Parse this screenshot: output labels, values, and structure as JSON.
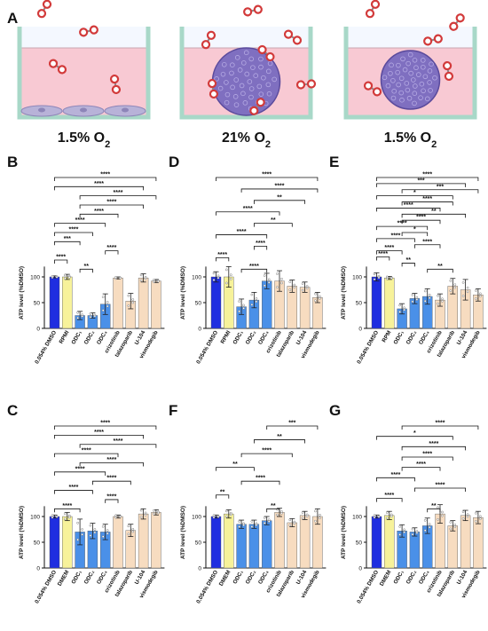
{
  "panel_a": {
    "letter": "A",
    "wells": [
      {
        "label": "1.5% O",
        "sub": "2",
        "content": "cell-monolayer"
      },
      {
        "label": "21% O",
        "sub": "2",
        "content": "spheroid"
      },
      {
        "label": "1.5% O",
        "sub": "2",
        "content": "spheroid"
      }
    ]
  },
  "colors": {
    "dmso": "#1f2ee0",
    "medium": "#f7f29a",
    "odc": "#4a90e8",
    "drug": "#f7dcc0",
    "media_pink": "#f8c9d3",
    "well_wall": "#a8d8c8",
    "o2_ring": "#d23a3a"
  },
  "ylabel": "ATP level (%DMSO)",
  "chart_data": [
    {
      "panel": "B",
      "type": "bar",
      "categories": [
        "0.054% DMSO",
        "RPMI",
        "ODC₁",
        "ODC₂",
        "ODC₃",
        "crizotinib",
        "talazoparib",
        "U-104",
        "vismodegib"
      ],
      "values": [
        100,
        100,
        25,
        25,
        47,
        98,
        53,
        98,
        92
      ],
      "errors": [
        2,
        5,
        8,
        5,
        20,
        2,
        15,
        8,
        3
      ],
      "ylabel": "ATP level (%DMSO)",
      "ylim": [
        0,
        150
      ],
      "yticks": [
        0,
        50,
        100
      ],
      "brackets": [
        {
          "from": 0,
          "to": 8,
          "label": "****"
        },
        {
          "from": 0,
          "to": 7,
          "label": "****"
        },
        {
          "from": 2,
          "to": 8,
          "label": "****"
        },
        {
          "from": 2,
          "to": 7,
          "label": "****"
        },
        {
          "from": 2,
          "to": 5,
          "label": "****"
        },
        {
          "from": 0,
          "to": 4,
          "label": "****"
        },
        {
          "from": 0,
          "to": 3,
          "label": "****"
        },
        {
          "from": 0,
          "to": 2,
          "label": "***"
        },
        {
          "from": 4,
          "to": 5,
          "label": "****"
        },
        {
          "from": 0,
          "to": 1,
          "label": "****"
        },
        {
          "from": 2,
          "to": 3,
          "label": "**"
        }
      ]
    },
    {
      "panel": "D",
      "type": "bar",
      "categories": [
        "0.054% DMSO",
        "RPMI",
        "ODC₁",
        "ODC₂",
        "ODC₃",
        "crizotinib",
        "talazoparib",
        "U-104",
        "vismodegib"
      ],
      "values": [
        100,
        100,
        42,
        55,
        92,
        92,
        82,
        80,
        60
      ],
      "errors": [
        10,
        20,
        15,
        15,
        15,
        20,
        12,
        10,
        10
      ],
      "ylabel": "ATP level (%DMSO)",
      "ylim": [
        0,
        150
      ],
      "yticks": [
        0,
        50,
        100
      ],
      "brackets": [
        {
          "from": 0,
          "to": 8,
          "label": "****"
        },
        {
          "from": 2,
          "to": 8,
          "label": "****"
        },
        {
          "from": 3,
          "to": 7,
          "label": "**"
        },
        {
          "from": 0,
          "to": 5,
          "label": "****"
        },
        {
          "from": 3,
          "to": 6,
          "label": "**"
        },
        {
          "from": 0,
          "to": 4,
          "label": "****"
        },
        {
          "from": 3,
          "to": 4,
          "label": "****"
        },
        {
          "from": 0,
          "to": 1,
          "label": "****"
        },
        {
          "from": 2,
          "to": 4,
          "label": "****"
        }
      ]
    },
    {
      "panel": "E",
      "type": "bar",
      "categories": [
        "0.054% DMSO",
        "RPM",
        "ODC₁",
        "ODC₂",
        "ODC₃",
        "crizotinib",
        "talazoparib",
        "U-104",
        "vismodegib"
      ],
      "values": [
        100,
        98,
        38,
        58,
        62,
        55,
        82,
        75,
        65
      ],
      "errors": [
        8,
        3,
        10,
        10,
        15,
        12,
        15,
        20,
        12
      ],
      "ylabel": "ATP level (%DMSO)",
      "ylim": [
        0,
        150
      ],
      "yticks": [
        0,
        50,
        100
      ],
      "brackets": [
        {
          "from": 0,
          "to": 8,
          "label": "****"
        },
        {
          "from": 0,
          "to": 7,
          "label": "***"
        },
        {
          "from": 2,
          "to": 8,
          "label": "***"
        },
        {
          "from": 0,
          "to": 6,
          "label": "*"
        },
        {
          "from": 2,
          "to": 6,
          "label": "****"
        },
        {
          "from": 0,
          "to": 5,
          "label": "****"
        },
        {
          "from": 2,
          "to": 7,
          "label": "**"
        },
        {
          "from": 2,
          "to": 5,
          "label": "****"
        },
        {
          "from": 0,
          "to": 4,
          "label": "****"
        },
        {
          "from": 2,
          "to": 4,
          "label": "*"
        },
        {
          "from": 0,
          "to": 3,
          "label": "****"
        },
        {
          "from": 3,
          "to": 5,
          "label": "****"
        },
        {
          "from": 0,
          "to": 2,
          "label": "****"
        },
        {
          "from": 0,
          "to": 1,
          "label": "****"
        },
        {
          "from": 2,
          "to": 3,
          "label": "**"
        },
        {
          "from": 4,
          "to": 6,
          "label": "**"
        }
      ]
    },
    {
      "panel": "C",
      "type": "bar",
      "categories": [
        "0.054% DMSO",
        "DMEM",
        "ODC₁",
        "ODC₂",
        "ODC₃",
        "crizotinib",
        "talazoparib",
        "U-104",
        "vismodegib"
      ],
      "values": [
        100,
        100,
        70,
        72,
        70,
        100,
        73,
        105,
        108
      ],
      "errors": [
        3,
        8,
        25,
        15,
        15,
        3,
        12,
        10,
        5
      ],
      "ylabel": "ATP level (%DMSO)",
      "ylim": [
        0,
        150
      ],
      "yticks": [
        0,
        50,
        100
      ],
      "brackets": [
        {
          "from": 0,
          "to": 8,
          "label": "****"
        },
        {
          "from": 0,
          "to": 7,
          "label": "****"
        },
        {
          "from": 2,
          "to": 8,
          "label": "****"
        },
        {
          "from": 0,
          "to": 5,
          "label": "****"
        },
        {
          "from": 2,
          "to": 7,
          "label": "****"
        },
        {
          "from": 0,
          "to": 4,
          "label": "****"
        },
        {
          "from": 3,
          "to": 6,
          "label": "****"
        },
        {
          "from": 0,
          "to": 3,
          "label": "****"
        },
        {
          "from": 4,
          "to": 5,
          "label": "****"
        },
        {
          "from": 0,
          "to": 2,
          "label": "****"
        }
      ]
    },
    {
      "panel": "F",
      "type": "bar",
      "categories": [
        "0.054% DMSO",
        "DMEM",
        "ODC₁",
        "ODC₂",
        "ODC₃",
        "crizotinib",
        "talazoparib",
        "U-104",
        "vismodegib"
      ],
      "values": [
        100,
        105,
        85,
        85,
        92,
        108,
        88,
        102,
        100
      ],
      "errors": [
        3,
        8,
        8,
        8,
        8,
        8,
        8,
        8,
        15
      ],
      "ylabel": "ATP level (%DMSO)",
      "ylim": [
        0,
        150
      ],
      "yticks": [
        0,
        50,
        100
      ],
      "brackets": [
        {
          "from": 4,
          "to": 8,
          "label": "***"
        },
        {
          "from": 3,
          "to": 7,
          "label": "**"
        },
        {
          "from": 2,
          "to": 6,
          "label": "****"
        },
        {
          "from": 0,
          "to": 3,
          "label": "**"
        },
        {
          "from": 2,
          "to": 5,
          "label": "****"
        },
        {
          "from": 0,
          "to": 1,
          "label": "**"
        },
        {
          "from": 4,
          "to": 5,
          "label": "**"
        }
      ]
    },
    {
      "panel": "G",
      "type": "bar",
      "categories": [
        "0.054% DMSO",
        "DMEM",
        "ODC₁",
        "ODC₂",
        "ODC₃",
        "crizotinib",
        "talazoparib",
        "U-104",
        "vismodegib"
      ],
      "values": [
        100,
        102,
        72,
        70,
        82,
        105,
        82,
        102,
        98
      ],
      "errors": [
        3,
        8,
        12,
        8,
        15,
        18,
        10,
        10,
        12
      ],
      "ylabel": "ATP level (%DMSO)",
      "ylim": [
        0,
        150
      ],
      "yticks": [
        0,
        50,
        100
      ],
      "brackets": [
        {
          "from": 2,
          "to": 8,
          "label": "****"
        },
        {
          "from": 0,
          "to": 6,
          "label": "*"
        },
        {
          "from": 2,
          "to": 7,
          "label": "****"
        },
        {
          "from": 2,
          "to": 6,
          "label": "****"
        },
        {
          "from": 2,
          "to": 5,
          "label": "****"
        },
        {
          "from": 0,
          "to": 3,
          "label": "****"
        },
        {
          "from": 3,
          "to": 7,
          "label": "****"
        },
        {
          "from": 0,
          "to": 2,
          "label": "****"
        },
        {
          "from": 4,
          "to": 5,
          "label": "**"
        }
      ]
    }
  ]
}
